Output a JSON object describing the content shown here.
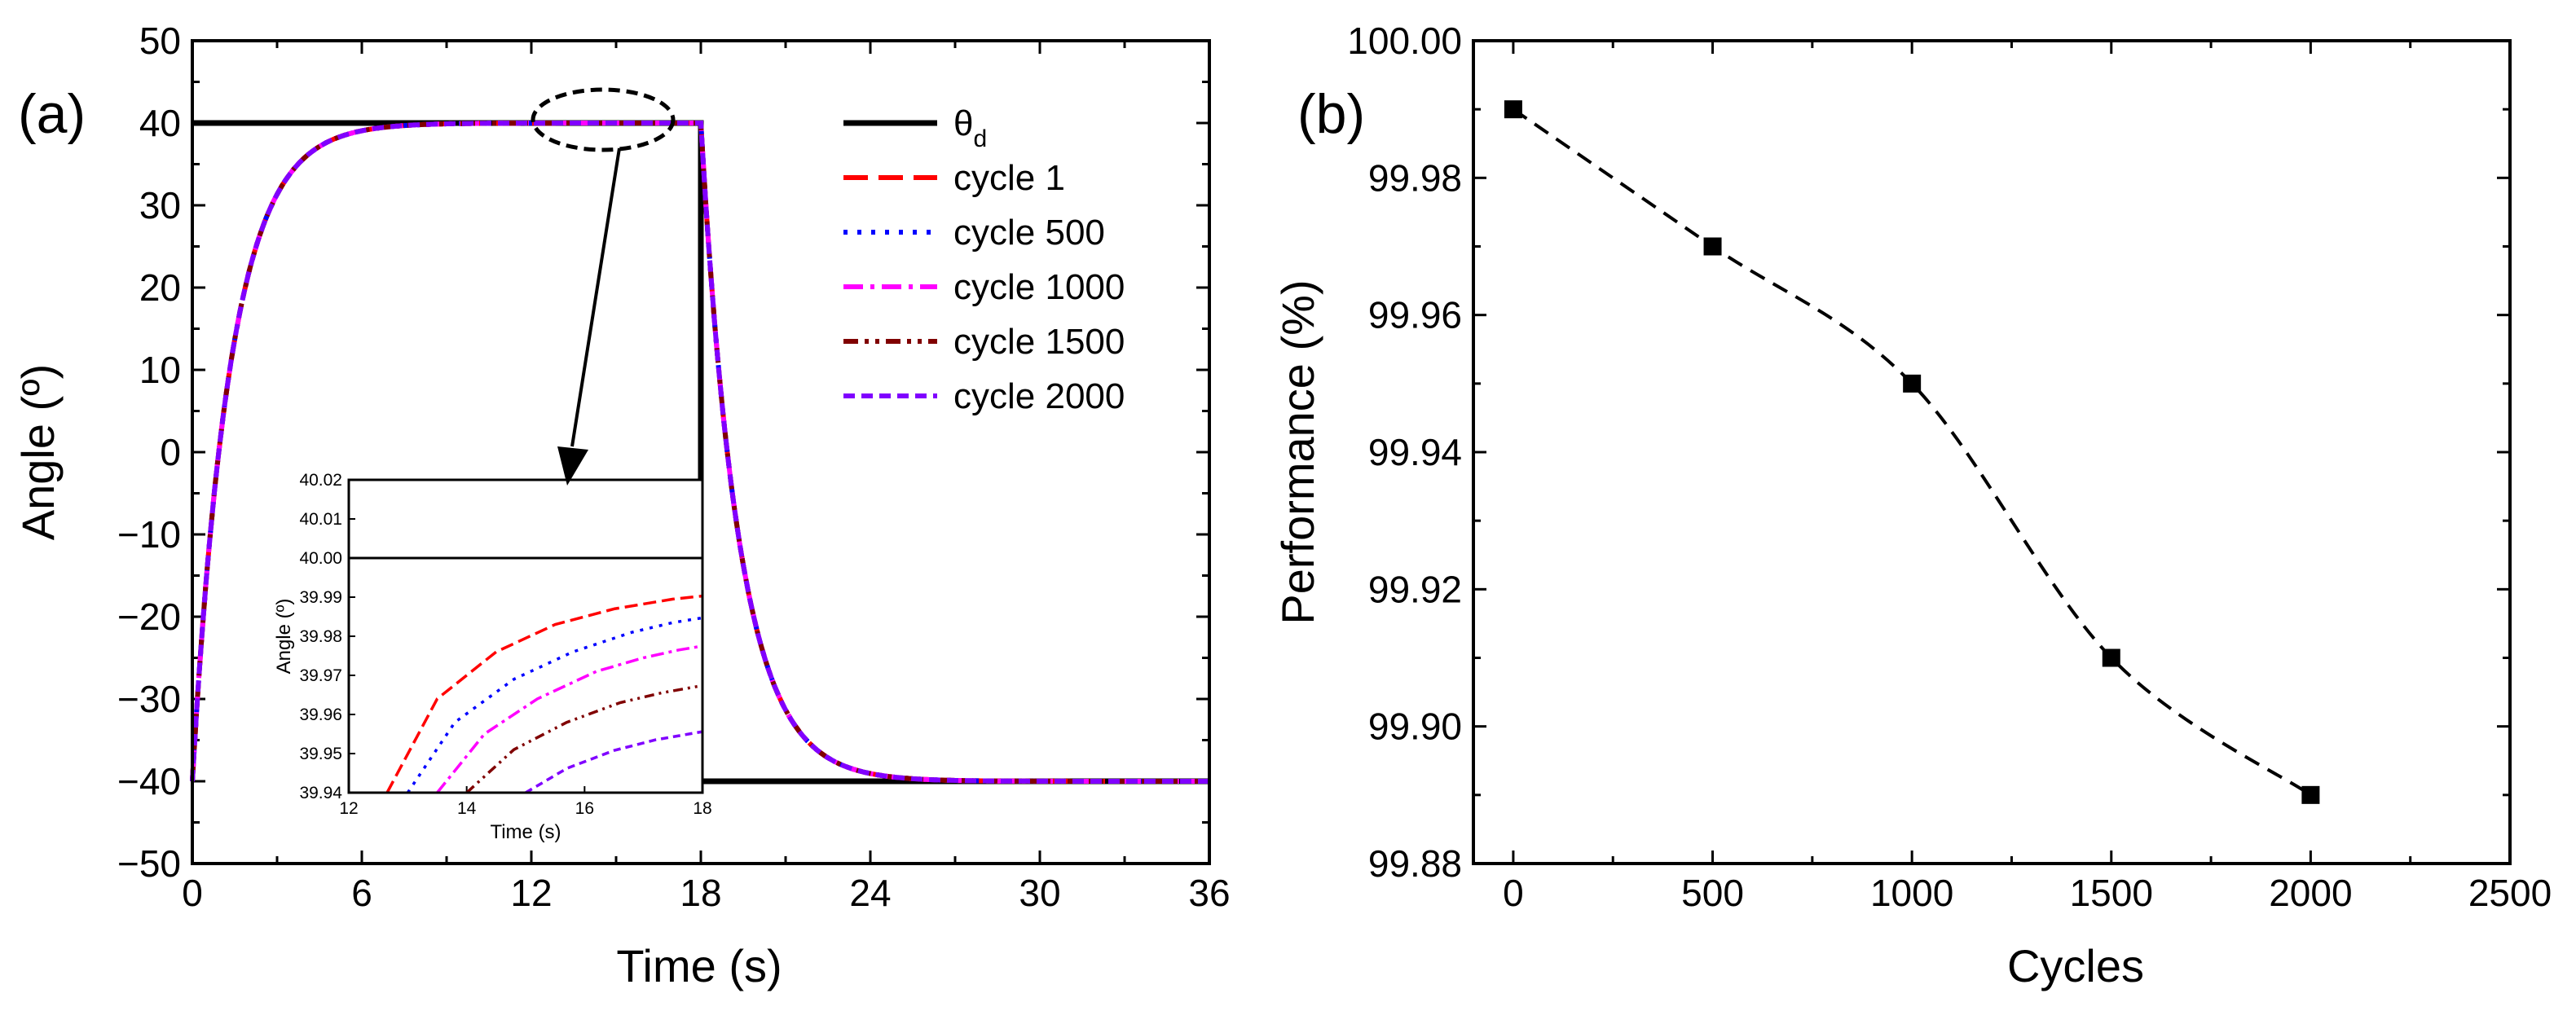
{
  "chart_data": [
    {
      "type": "line",
      "panel_label": "(a)",
      "xlabel": "Time (s)",
      "ylabel": "Angle (º)",
      "xlim": [
        0,
        36
      ],
      "ylim": [
        -50,
        50
      ],
      "xticks": [
        0,
        6,
        12,
        18,
        24,
        30,
        36
      ],
      "yticks": [
        50,
        40,
        30,
        20,
        10,
        0,
        -10,
        -20,
        -30,
        -40,
        -50
      ],
      "series": [
        {
          "name": "θd",
          "legend_main": "θ",
          "legend_sub": "d",
          "color": "#000000",
          "style": "solid",
          "description": "Square-wave reference",
          "x": [
            0,
            18,
            18,
            36
          ],
          "y": [
            40,
            40,
            -40,
            -40
          ]
        },
        {
          "name": "cycle 1",
          "color": "#ff0000",
          "style": "dash",
          "x": [
            0,
            1,
            2,
            3,
            4,
            6,
            8,
            10,
            12,
            18,
            19,
            20,
            21,
            22,
            24,
            26,
            28,
            30,
            36
          ],
          "y": [
            -40,
            -5,
            16,
            28,
            34,
            38.6,
            39.6,
            39.9,
            39.97,
            39.99,
            5,
            -16,
            -28,
            -34,
            -38.6,
            -39.6,
            -39.9,
            -39.97,
            -39.99
          ]
        },
        {
          "name": "cycle 500",
          "color": "#0000ff",
          "style": "dot"
        },
        {
          "name": "cycle 1000",
          "color": "#ff00ff",
          "style": "dashdot"
        },
        {
          "name": "cycle 1500",
          "color": "#800000",
          "style": "dashdotdot"
        },
        {
          "name": "cycle 2000",
          "color": "#8000ff",
          "style": "shortdash"
        }
      ],
      "inset": {
        "xlabel": "Time (s)",
        "ylabel": "Angle (º)",
        "xlim": [
          12,
          18
        ],
        "ylim": [
          39.94,
          40.02
        ],
        "xticks": [
          "12",
          "14",
          "16",
          "18"
        ],
        "yticks": [
          "40.02",
          "40.01",
          "40.00",
          "39.99",
          "39.98",
          "39.97",
          "39.96",
          "39.95",
          "39.94"
        ],
        "reference": 40.0,
        "series": [
          {
            "name": "cycle 1",
            "color": "#ff0000",
            "x": [
              12.65,
              13.5,
              14.5,
              15.5,
              16.5,
              17.5,
              18
            ],
            "y": [
              39.94,
              39.964,
              39.976,
              39.983,
              39.987,
              39.9895,
              39.9903
            ]
          },
          {
            "name": "cycle 500",
            "color": "#0000ff",
            "x": [
              13.0,
              13.8,
              14.8,
              15.8,
              16.8,
              17.5,
              18
            ],
            "y": [
              39.94,
              39.958,
              39.969,
              39.976,
              39.981,
              39.9835,
              39.9847
            ]
          },
          {
            "name": "cycle 1000",
            "color": "#ff00ff",
            "x": [
              13.5,
              14.3,
              15.2,
              16.2,
              17.0,
              17.6,
              18
            ],
            "y": [
              39.94,
              39.955,
              39.964,
              39.971,
              39.9745,
              39.9765,
              39.9775
            ]
          },
          {
            "name": "cycle 1500",
            "color": "#800000",
            "x": [
              14.0,
              14.8,
              15.7,
              16.6,
              17.3,
              18
            ],
            "y": [
              39.94,
              39.951,
              39.958,
              39.963,
              39.9655,
              39.9674
            ]
          },
          {
            "name": "cycle 2000",
            "color": "#8000ff",
            "x": [
              15.0,
              15.7,
              16.5,
              17.2,
              18
            ],
            "y": [
              39.94,
              39.9462,
              39.9508,
              39.9535,
              39.9556
            ]
          }
        ]
      }
    },
    {
      "type": "line",
      "panel_label": "(b)",
      "xlabel": "Cycles",
      "ylabel": "Performance (%)",
      "xlim": [
        -100,
        2500
      ],
      "ylim": [
        99.88,
        100.0
      ],
      "xticks": [
        "0",
        "500",
        "1000",
        "1500",
        "2000",
        "2500"
      ],
      "yticks": [
        "100.00",
        "99.98",
        "99.96",
        "99.94",
        "99.92",
        "99.90",
        "99.88"
      ],
      "series": [
        {
          "name": "Performance",
          "color": "#000000",
          "style": "dash",
          "marker": "square",
          "x": [
            0,
            500,
            1000,
            1500,
            2000
          ],
          "y": [
            99.99,
            99.97,
            99.95,
            99.91,
            99.89
          ]
        }
      ]
    }
  ]
}
